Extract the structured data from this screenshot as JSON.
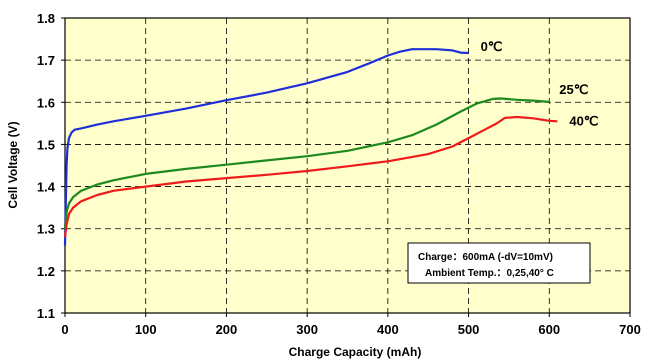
{
  "chart_data": {
    "type": "line",
    "xlabel": "Charge Capacity (mAh)",
    "ylabel": "Cell Voltage (V)",
    "xlim": [
      0,
      700
    ],
    "ylim": [
      1.1,
      1.8
    ],
    "xticks": [
      0,
      100,
      200,
      300,
      400,
      500,
      600,
      700
    ],
    "yticks": [
      1.1,
      1.2,
      1.3,
      1.4,
      1.5,
      1.6,
      1.7,
      1.8
    ],
    "xtick_labels": [
      "0",
      "100",
      "200",
      "300",
      "400",
      "500",
      "600",
      "700"
    ],
    "ytick_labels": [
      "1.1",
      "1.2",
      "1.3",
      "1.4",
      "1.5",
      "1.6",
      "1.7",
      "1.8"
    ],
    "grid": true,
    "plot_background": "#FFFFCC",
    "series": [
      {
        "name": "0℃",
        "color": "#1f2fd8",
        "points": [
          [
            0,
            1.26
          ],
          [
            1,
            1.36
          ],
          [
            2,
            1.45
          ],
          [
            3,
            1.49
          ],
          [
            5,
            1.515
          ],
          [
            8,
            1.528
          ],
          [
            12,
            1.535
          ],
          [
            20,
            1.538
          ],
          [
            40,
            1.547
          ],
          [
            60,
            1.555
          ],
          [
            100,
            1.568
          ],
          [
            150,
            1.585
          ],
          [
            200,
            1.605
          ],
          [
            250,
            1.623
          ],
          [
            300,
            1.645
          ],
          [
            350,
            1.672
          ],
          [
            380,
            1.695
          ],
          [
            400,
            1.711
          ],
          [
            415,
            1.72
          ],
          [
            430,
            1.726
          ],
          [
            460,
            1.726
          ],
          [
            480,
            1.723
          ],
          [
            490,
            1.718
          ],
          [
            500,
            1.717
          ]
        ]
      },
      {
        "name": "25℃",
        "color": "#1e8a1e",
        "points": [
          [
            0,
            1.3
          ],
          [
            2,
            1.34
          ],
          [
            5,
            1.36
          ],
          [
            10,
            1.375
          ],
          [
            20,
            1.39
          ],
          [
            40,
            1.405
          ],
          [
            60,
            1.415
          ],
          [
            100,
            1.43
          ],
          [
            150,
            1.442
          ],
          [
            200,
            1.452
          ],
          [
            250,
            1.462
          ],
          [
            300,
            1.472
          ],
          [
            350,
            1.485
          ],
          [
            400,
            1.505
          ],
          [
            430,
            1.522
          ],
          [
            460,
            1.547
          ],
          [
            490,
            1.578
          ],
          [
            510,
            1.597
          ],
          [
            530,
            1.608
          ],
          [
            540,
            1.609
          ],
          [
            560,
            1.606
          ],
          [
            580,
            1.604
          ],
          [
            600,
            1.601
          ]
        ]
      },
      {
        "name": "40℃",
        "color": "#ee1b1b",
        "points": [
          [
            0,
            1.28
          ],
          [
            2,
            1.31
          ],
          [
            5,
            1.335
          ],
          [
            10,
            1.35
          ],
          [
            20,
            1.365
          ],
          [
            40,
            1.38
          ],
          [
            60,
            1.39
          ],
          [
            100,
            1.4
          ],
          [
            150,
            1.412
          ],
          [
            200,
            1.42
          ],
          [
            250,
            1.428
          ],
          [
            300,
            1.437
          ],
          [
            350,
            1.448
          ],
          [
            400,
            1.46
          ],
          [
            450,
            1.477
          ],
          [
            480,
            1.495
          ],
          [
            500,
            1.515
          ],
          [
            520,
            1.535
          ],
          [
            535,
            1.55
          ],
          [
            545,
            1.563
          ],
          [
            560,
            1.565
          ],
          [
            580,
            1.562
          ],
          [
            600,
            1.556
          ],
          [
            610,
            1.555
          ]
        ]
      }
    ],
    "annotation": {
      "line1": "Charge：600mA (-dV=10mV)",
      "line2": "Ambient Temp.：0,25,40° C"
    }
  }
}
